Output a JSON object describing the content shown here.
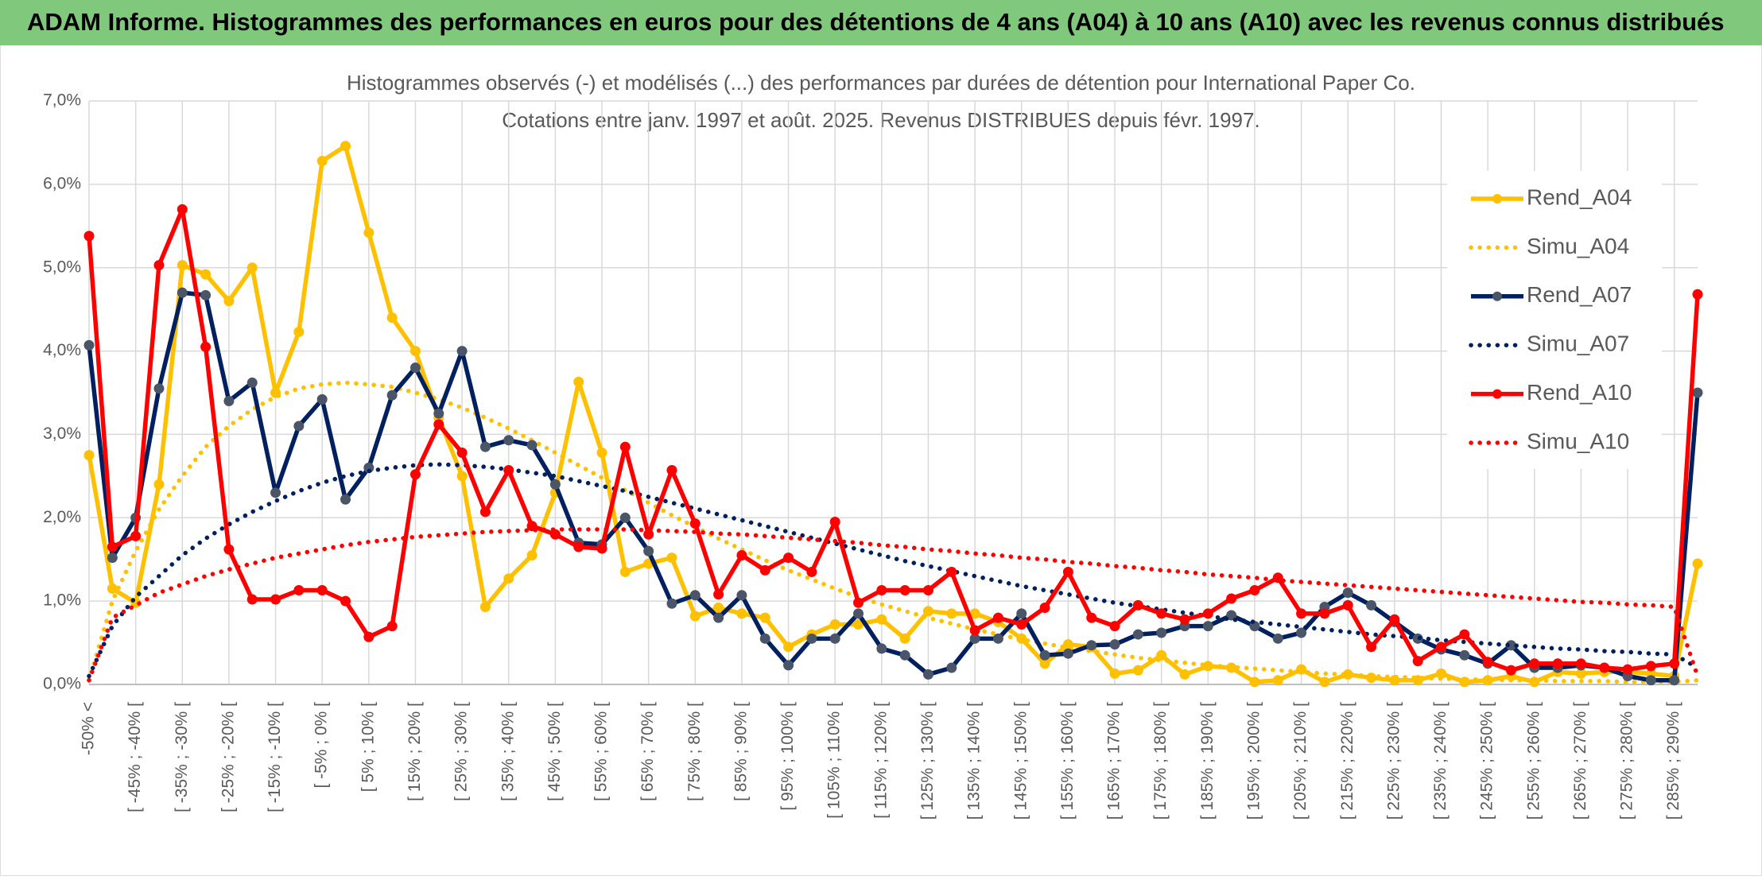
{
  "header": {
    "title": "ADAM Informe. Histogrammes des performances en euros pour des détentions de 4 ans (A04) à 10 ans (A10) avec les revenus connus distribués"
  },
  "chart_data": {
    "type": "line",
    "title": "Histogrammes observés (-) et modélisés (...) des performances par durées de détention pour International Paper Co.",
    "subtitle": "Cotations entre janv. 1997 et août. 2025. Revenus DISTRIBUES depuis févr. 1997.",
    "categories": [
      "-50% <",
      null,
      "[ -45% ; -40% [",
      null,
      "[ -35% ; -30% [",
      null,
      "[ -25% ; -20% [",
      null,
      "[ -15% ; -10% [",
      null,
      "[ -5% ; 0% [",
      null,
      "[ 5% ; 10% [",
      null,
      "[ 15% ; 20% [",
      null,
      "[ 25% ; 30% [",
      null,
      "[ 35% ; 40% [",
      null,
      "[ 45% ; 50% [",
      null,
      "[ 55% ; 60% [",
      null,
      "[ 65% ; 70% [",
      null,
      "[ 75% ; 80% [",
      null,
      "[ 85% ; 90% [",
      null,
      "[ 95% ; 100% [",
      null,
      "[ 105% ; 110% [",
      null,
      "[ 115% ; 120% [",
      null,
      "[ 125% ; 130% [",
      null,
      "[ 135% ; 140% [",
      null,
      "[ 145% ; 150% [",
      null,
      "[ 155% ; 160% [",
      null,
      "[ 165% ; 170% [",
      null,
      "[ 175% ; 180% [",
      null,
      "[ 185% ; 190% [",
      null,
      "[ 195% ; 200% [",
      null,
      "[ 205% ; 210% [",
      null,
      "[ 215% ; 220% [",
      null,
      "[ 225% ; 230% [",
      null,
      "[ 235% ; 240% [",
      null,
      "[ 245% ; 250% [",
      null,
      "[ 255% ; 260% [",
      null,
      "[ 265% ; 270% [",
      null,
      "[ 275% ; 280% [",
      null,
      "[ 285% ; 290% [",
      null
    ],
    "series": [
      {
        "name": "Rend_A04",
        "color": "#FFC000",
        "style": "solid",
        "marker_color": "#FFC000",
        "values": [
          2.75,
          1.15,
          0.98,
          2.4,
          5.03,
          4.92,
          4.6,
          5.0,
          3.5,
          4.23,
          6.28,
          6.46,
          5.42,
          4.4,
          4.0,
          3.2,
          2.5,
          0.93,
          1.27,
          1.55,
          2.3,
          3.63,
          2.78,
          1.35,
          1.45,
          1.52,
          0.82,
          0.92,
          0.85,
          0.8,
          0.45,
          0.6,
          0.72,
          0.72,
          0.78,
          0.55,
          0.88,
          0.85,
          0.85,
          0.75,
          0.55,
          0.25,
          0.48,
          0.45,
          0.13,
          0.17,
          0.35,
          0.12,
          0.22,
          0.2,
          0.03,
          0.05,
          0.18,
          0.03,
          0.12,
          0.08,
          0.05,
          0.05,
          0.13,
          0.03,
          0.05,
          0.1,
          0.03,
          0.15,
          0.13,
          0.15,
          0.15,
          0.13,
          0.1,
          1.45
        ]
      },
      {
        "name": "Simu_A04",
        "color": "#FFC000",
        "style": "dotted",
        "values": [
          0.05,
          1.0,
          1.6,
          2.1,
          2.5,
          2.85,
          3.1,
          3.3,
          3.45,
          3.55,
          3.6,
          3.62,
          3.6,
          3.57,
          3.5,
          3.42,
          3.32,
          3.2,
          3.07,
          2.93,
          2.78,
          2.63,
          2.48,
          2.33,
          2.18,
          2.03,
          1.89,
          1.75,
          1.62,
          1.49,
          1.37,
          1.26,
          1.15,
          1.05,
          0.96,
          0.88,
          0.8,
          0.73,
          0.66,
          0.6,
          0.54,
          0.49,
          0.44,
          0.4,
          0.36,
          0.32,
          0.29,
          0.26,
          0.23,
          0.21,
          0.19,
          0.17,
          0.15,
          0.13,
          0.12,
          0.1,
          0.09,
          0.08,
          0.07,
          0.06,
          0.06,
          0.05,
          0.05,
          0.04,
          0.04,
          0.04,
          0.03,
          0.03,
          0.03,
          0.05
        ]
      },
      {
        "name": "Rend_A07",
        "color": "#002060",
        "style": "solid",
        "marker_color": "#4A5568",
        "values": [
          4.07,
          1.52,
          2.0,
          3.55,
          4.7,
          4.67,
          3.4,
          3.62,
          2.3,
          3.1,
          3.42,
          2.22,
          2.6,
          3.47,
          3.8,
          3.25,
          4.0,
          2.85,
          2.93,
          2.87,
          2.4,
          1.7,
          1.68,
          2.0,
          1.6,
          0.97,
          1.07,
          0.8,
          1.07,
          0.55,
          0.23,
          0.55,
          0.55,
          0.85,
          0.43,
          0.35,
          0.12,
          0.2,
          0.55,
          0.55,
          0.85,
          0.35,
          0.37,
          0.47,
          0.48,
          0.6,
          0.62,
          0.7,
          0.7,
          0.83,
          0.7,
          0.55,
          0.62,
          0.93,
          1.1,
          0.95,
          0.75,
          0.55,
          0.42,
          0.35,
          0.25,
          0.47,
          0.2,
          0.2,
          0.23,
          0.2,
          0.1,
          0.05,
          0.05,
          3.5
        ]
      },
      {
        "name": "Simu_A07",
        "color": "#002060",
        "style": "dotted",
        "values": [
          0.1,
          0.7,
          1.05,
          1.3,
          1.55,
          1.75,
          1.92,
          2.07,
          2.2,
          2.32,
          2.42,
          2.5,
          2.56,
          2.6,
          2.63,
          2.64,
          2.63,
          2.61,
          2.58,
          2.54,
          2.5,
          2.44,
          2.38,
          2.32,
          2.25,
          2.18,
          2.11,
          2.04,
          1.97,
          1.9,
          1.83,
          1.76,
          1.69,
          1.62,
          1.55,
          1.48,
          1.42,
          1.36,
          1.3,
          1.24,
          1.18,
          1.13,
          1.08,
          1.03,
          0.98,
          0.94,
          0.9,
          0.86,
          0.82,
          0.78,
          0.75,
          0.72,
          0.69,
          0.66,
          0.63,
          0.6,
          0.58,
          0.56,
          0.53,
          0.51,
          0.49,
          0.47,
          0.45,
          0.43,
          0.42,
          0.4,
          0.39,
          0.37,
          0.36,
          0.2
        ]
      },
      {
        "name": "Rend_A10",
        "color": "#FF0000",
        "style": "solid",
        "marker_color": "#FF0000",
        "values": [
          5.38,
          1.65,
          1.78,
          5.03,
          5.7,
          4.05,
          1.62,
          1.02,
          1.02,
          1.13,
          1.13,
          1.0,
          0.57,
          0.7,
          2.52,
          3.12,
          2.78,
          2.07,
          2.57,
          1.9,
          1.8,
          1.65,
          1.63,
          2.85,
          1.8,
          2.57,
          1.93,
          1.08,
          1.55,
          1.37,
          1.52,
          1.35,
          1.95,
          0.98,
          1.13,
          1.13,
          1.13,
          1.35,
          0.65,
          0.8,
          0.72,
          0.92,
          1.35,
          0.8,
          0.7,
          0.95,
          0.85,
          0.78,
          0.85,
          1.03,
          1.13,
          1.28,
          0.85,
          0.85,
          0.95,
          0.45,
          0.78,
          0.28,
          0.45,
          0.6,
          0.27,
          0.17,
          0.25,
          0.25,
          0.25,
          0.2,
          0.18,
          0.22,
          0.25,
          4.68
        ]
      },
      {
        "name": "Simu_A10",
        "color": "#FF0000",
        "style": "dotted",
        "values": [
          0.05,
          0.8,
          0.95,
          1.1,
          1.2,
          1.3,
          1.38,
          1.45,
          1.52,
          1.57,
          1.62,
          1.67,
          1.71,
          1.74,
          1.77,
          1.79,
          1.81,
          1.83,
          1.84,
          1.85,
          1.86,
          1.86,
          1.86,
          1.86,
          1.85,
          1.84,
          1.83,
          1.81,
          1.8,
          1.78,
          1.76,
          1.74,
          1.72,
          1.7,
          1.67,
          1.65,
          1.62,
          1.6,
          1.57,
          1.55,
          1.52,
          1.5,
          1.47,
          1.45,
          1.42,
          1.4,
          1.37,
          1.35,
          1.32,
          1.3,
          1.28,
          1.25,
          1.23,
          1.21,
          1.19,
          1.17,
          1.15,
          1.13,
          1.11,
          1.09,
          1.07,
          1.05,
          1.03,
          1.01,
          0.99,
          0.98,
          0.96,
          0.95,
          0.93,
          0.1
        ]
      }
    ],
    "ylim": [
      0,
      7
    ],
    "yticks": [
      {
        "value": 0,
        "label": "0,0%"
      },
      {
        "value": 1,
        "label": "1,0%"
      },
      {
        "value": 2,
        "label": "2,0%"
      },
      {
        "value": 3,
        "label": "3,0%"
      },
      {
        "value": 4,
        "label": "4,0%"
      },
      {
        "value": 5,
        "label": "5,0%"
      },
      {
        "value": 6,
        "label": "6,0%"
      },
      {
        "value": 7,
        "label": "7,0%"
      }
    ],
    "grid": true,
    "legend": "right"
  }
}
